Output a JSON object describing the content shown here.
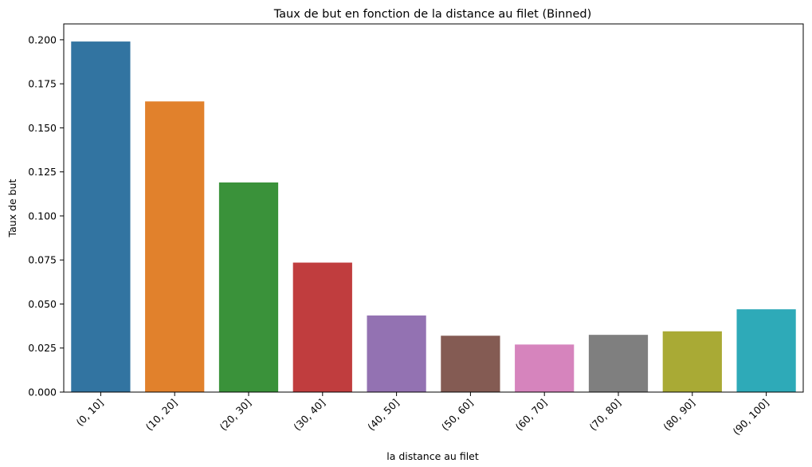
{
  "chart_data": {
    "type": "bar",
    "title": "Taux de but en fonction de la distance au filet (Binned)",
    "xlabel": "la distance au filet",
    "ylabel": "Taux de but",
    "categories": [
      "(0, 10]",
      "(10, 20]",
      "(20, 30]",
      "(30, 40]",
      "(40, 50]",
      "(50, 60]",
      "(60, 70]",
      "(70, 80]",
      "(80, 90]",
      "(90, 100]"
    ],
    "values": [
      0.199,
      0.165,
      0.119,
      0.0735,
      0.0435,
      0.032,
      0.027,
      0.0325,
      0.0345,
      0.047
    ],
    "colors": [
      "#3274a1",
      "#e1812c",
      "#3a923a",
      "#c03d3e",
      "#9372b2",
      "#845b53",
      "#d684bd",
      "#7f7f7f",
      "#a9aa35",
      "#2eaab8"
    ],
    "ylim": [
      0,
      0.209
    ],
    "yticks": [
      0.0,
      0.025,
      0.05,
      0.075,
      0.1,
      0.125,
      0.15,
      0.175,
      0.2
    ],
    "ytick_labels": [
      "0.000",
      "0.025",
      "0.050",
      "0.075",
      "0.100",
      "0.125",
      "0.150",
      "0.175",
      "0.200"
    ],
    "grid": false,
    "legend": "none"
  }
}
